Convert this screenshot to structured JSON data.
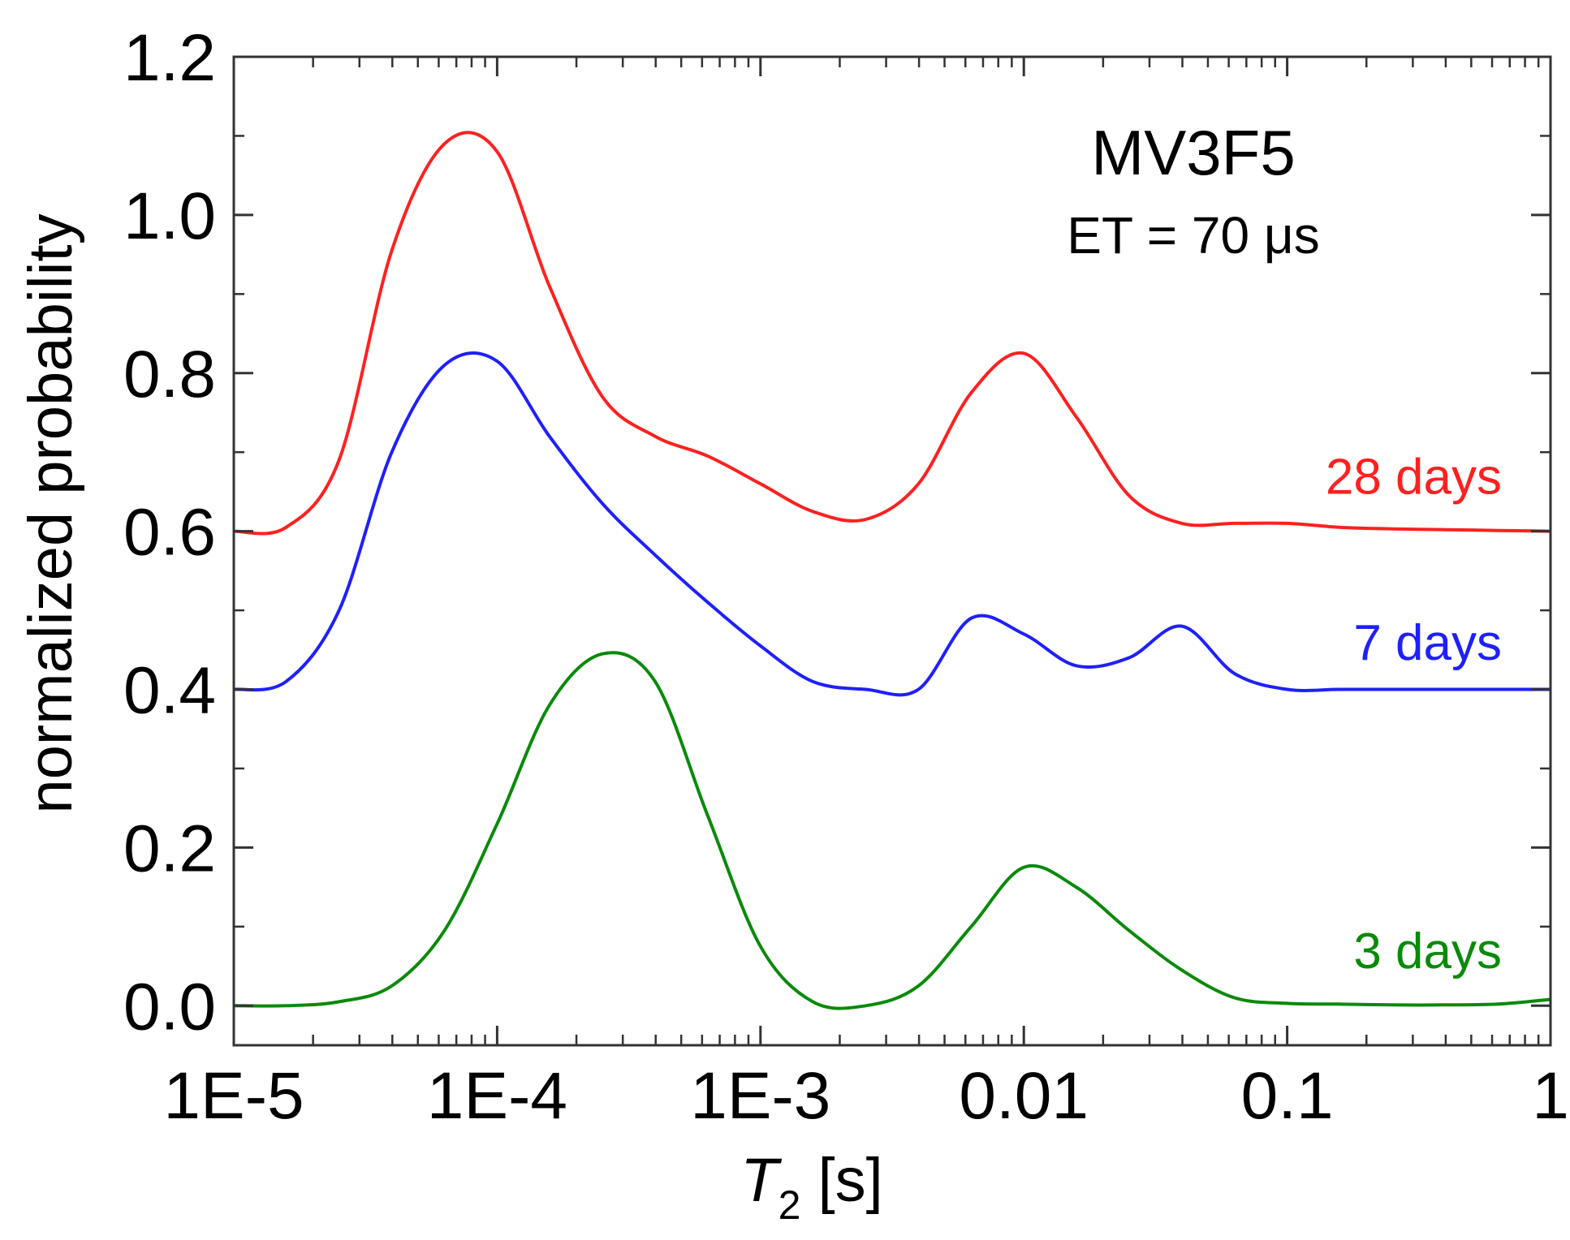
{
  "chart_data": {
    "type": "line",
    "title": "",
    "xlabel": {
      "symbol": "T",
      "subscript": "2",
      "unit": " [s]"
    },
    "ylabel": "normalized probability",
    "xscale": "log",
    "xlim": [
      1e-05,
      1
    ],
    "ylim": [
      -0.05,
      1.2
    ],
    "x_ticks": [
      {
        "value": 1e-05,
        "label": "1E-5"
      },
      {
        "value": 0.0001,
        "label": "1E-4"
      },
      {
        "value": 0.001,
        "label": "1E-3"
      },
      {
        "value": 0.01,
        "label": "0.01"
      },
      {
        "value": 0.1,
        "label": "0.1"
      },
      {
        "value": 1,
        "label": "1"
      }
    ],
    "y_ticks": [
      {
        "value": 0.0,
        "label": "0.0"
      },
      {
        "value": 0.2,
        "label": "0.2"
      },
      {
        "value": 0.4,
        "label": "0.4"
      },
      {
        "value": 0.6,
        "label": "0.6"
      },
      {
        "value": 0.8,
        "label": "0.8"
      },
      {
        "value": 1.0,
        "label": "1.0"
      },
      {
        "value": 1.2,
        "label": "1.2"
      }
    ],
    "annotations": {
      "sample": "MV3F5",
      "echo_time": "ET = 70 μs"
    },
    "series": [
      {
        "name": "28 days",
        "color": "#ff2020",
        "label_y": 0.67,
        "x": [
          1e-05,
          1.58e-05,
          2.51e-05,
          3.98e-05,
          6.31e-05,
          0.0001,
          0.000158,
          0.000251,
          0.000398,
          0.000631,
          0.001,
          0.00158,
          0.00251,
          0.00398,
          0.00631,
          0.01,
          0.0158,
          0.0251,
          0.0398,
          0.0631,
          0.1,
          0.158,
          0.251,
          0.398,
          0.631,
          1
        ],
        "y": [
          0.6,
          0.605,
          0.69,
          0.955,
          1.09,
          1.08,
          0.91,
          0.77,
          0.72,
          0.695,
          0.66,
          0.625,
          0.615,
          0.66,
          0.775,
          0.825,
          0.745,
          0.645,
          0.61,
          0.61,
          0.61,
          0.605,
          0.603,
          0.602,
          0.601,
          0.6
        ]
      },
      {
        "name": "7 days",
        "color": "#1f1fff",
        "label_y": 0.46,
        "x": [
          1e-05,
          1.58e-05,
          2.51e-05,
          3.98e-05,
          6.31e-05,
          0.0001,
          0.000158,
          0.000251,
          0.000398,
          0.000631,
          0.001,
          0.00158,
          0.00251,
          0.00398,
          0.00631,
          0.01,
          0.0158,
          0.0251,
          0.0398,
          0.0631,
          0.1,
          0.158,
          0.251,
          0.398,
          0.631,
          1
        ],
        "y": [
          0.4,
          0.41,
          0.5,
          0.7,
          0.81,
          0.815,
          0.72,
          0.635,
          0.57,
          0.51,
          0.455,
          0.41,
          0.4,
          0.4,
          0.49,
          0.47,
          0.43,
          0.44,
          0.48,
          0.42,
          0.4,
          0.4,
          0.4,
          0.4,
          0.4,
          0.4
        ]
      },
      {
        "name": "3 days",
        "color": "#0a8a0a",
        "label_y": 0.07,
        "x": [
          1e-05,
          1.58e-05,
          2.51e-05,
          3.98e-05,
          6.31e-05,
          0.0001,
          0.000158,
          0.000251,
          0.000398,
          0.000631,
          0.001,
          0.00158,
          0.00251,
          0.00398,
          0.00631,
          0.01,
          0.0158,
          0.0251,
          0.0398,
          0.0631,
          0.1,
          0.158,
          0.251,
          0.398,
          0.631,
          1
        ],
        "y": [
          0.0,
          0.0,
          0.005,
          0.025,
          0.095,
          0.23,
          0.38,
          0.445,
          0.41,
          0.24,
          0.075,
          0.005,
          0.0,
          0.025,
          0.1,
          0.175,
          0.15,
          0.095,
          0.045,
          0.01,
          0.003,
          0.002,
          0.001,
          0.001,
          0.002,
          0.008
        ]
      }
    ]
  }
}
